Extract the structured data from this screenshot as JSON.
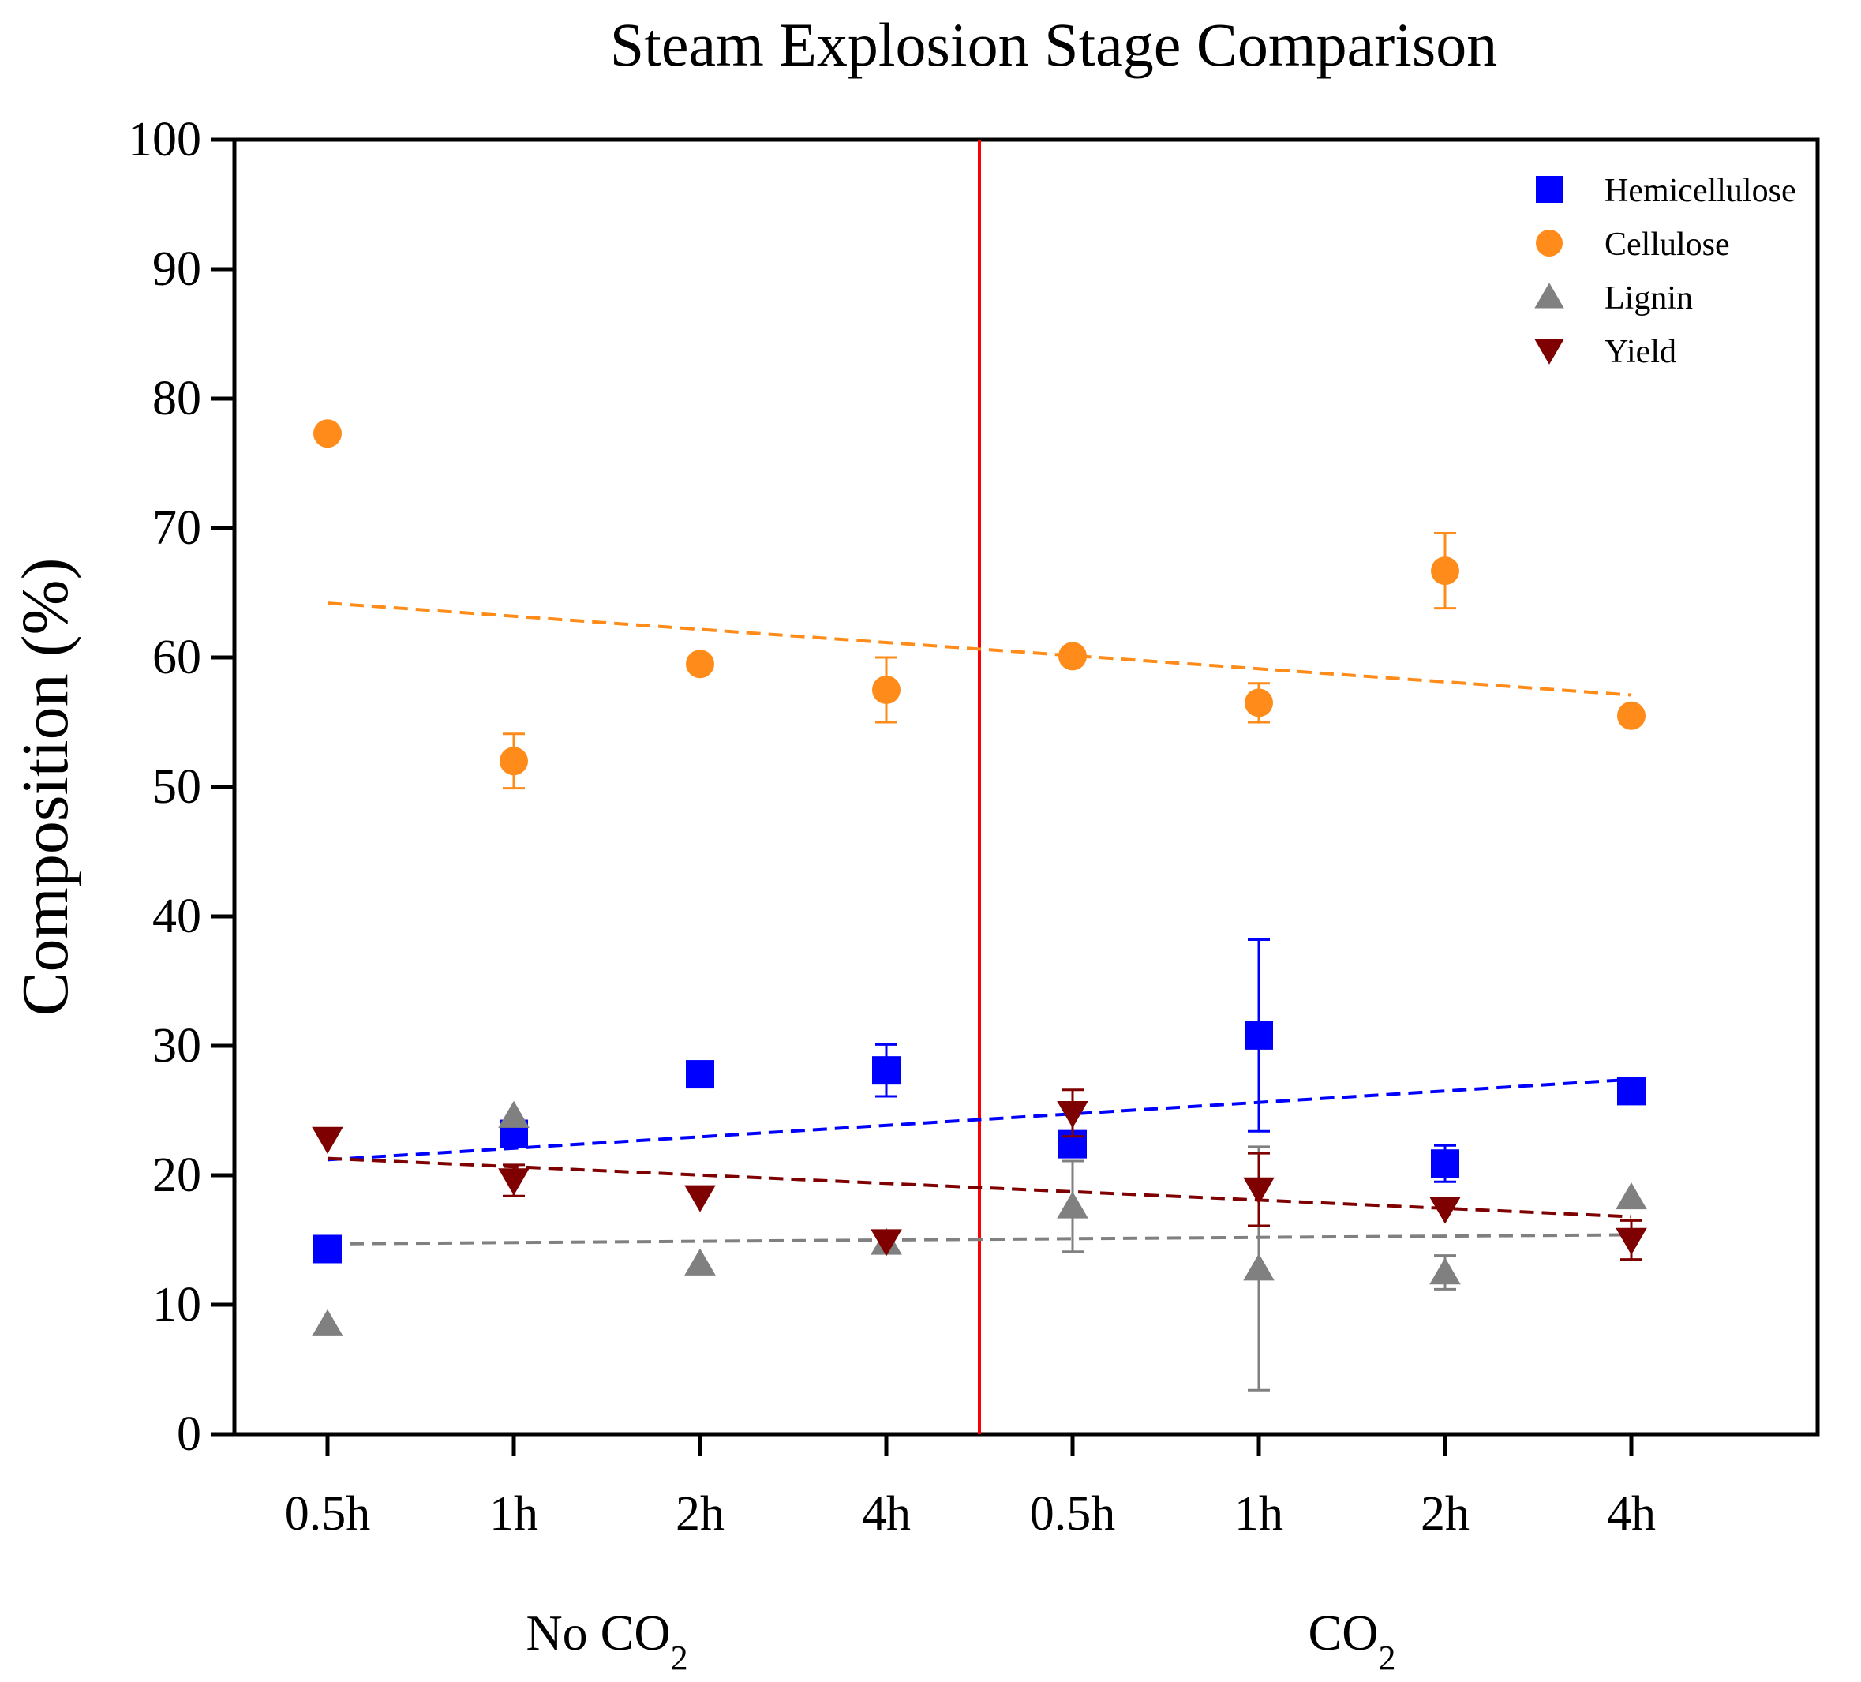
{
  "chart_data": {
    "type": "scatter",
    "title": "Steam Explosion Stage Comparison",
    "ylabel": "Composition (%)",
    "xlabel": "",
    "ylim": [
      0,
      100
    ],
    "yticks": [
      0,
      10,
      20,
      30,
      40,
      50,
      60,
      70,
      80,
      90,
      100
    ],
    "categories": [
      "0.5h",
      "1h",
      "2h",
      "4h",
      "0.5h",
      "1h",
      "2h",
      "4h"
    ],
    "groups": [
      {
        "label": "No CO",
        "subscript": "2"
      },
      {
        "label": "CO",
        "subscript": "2"
      }
    ],
    "divider_after_index": 3,
    "grid": false,
    "legend_position": "top-right",
    "series": [
      {
        "name": "Hemicellulose",
        "marker": "square",
        "color": "#0000ff",
        "values": [
          14.3,
          23.2,
          27.8,
          28.1,
          22.4,
          30.8,
          20.9,
          26.5
        ],
        "errors": [
          null,
          1.0,
          null,
          2.0,
          null,
          7.4,
          1.4,
          null
        ],
        "trend": [
          21.2,
          27.4
        ]
      },
      {
        "name": "Cellulose",
        "marker": "circle",
        "color": "#ff8c1a",
        "values": [
          77.3,
          52.0,
          59.5,
          57.5,
          60.1,
          56.5,
          66.7,
          55.5
        ],
        "errors": [
          null,
          2.1,
          null,
          2.5,
          null,
          1.5,
          2.9,
          null
        ],
        "trend": [
          64.2,
          57.1
        ]
      },
      {
        "name": "Lignin",
        "marker": "triangle-up",
        "color": "#808080",
        "values": [
          8.5,
          24.6,
          13.2,
          14.8,
          17.6,
          12.8,
          12.5,
          18.3
        ],
        "errors": [
          null,
          null,
          null,
          null,
          3.5,
          9.4,
          1.3,
          null
        ],
        "trend": [
          14.7,
          15.4
        ]
      },
      {
        "name": "Yield",
        "marker": "triangle-down",
        "color": "#7f0000",
        "values": [
          22.8,
          19.6,
          18.3,
          14.9,
          24.8,
          18.9,
          17.4,
          15.0
        ],
        "errors": [
          null,
          1.2,
          null,
          null,
          1.8,
          2.8,
          null,
          1.5
        ],
        "trend": [
          21.3,
          16.8
        ]
      }
    ]
  }
}
